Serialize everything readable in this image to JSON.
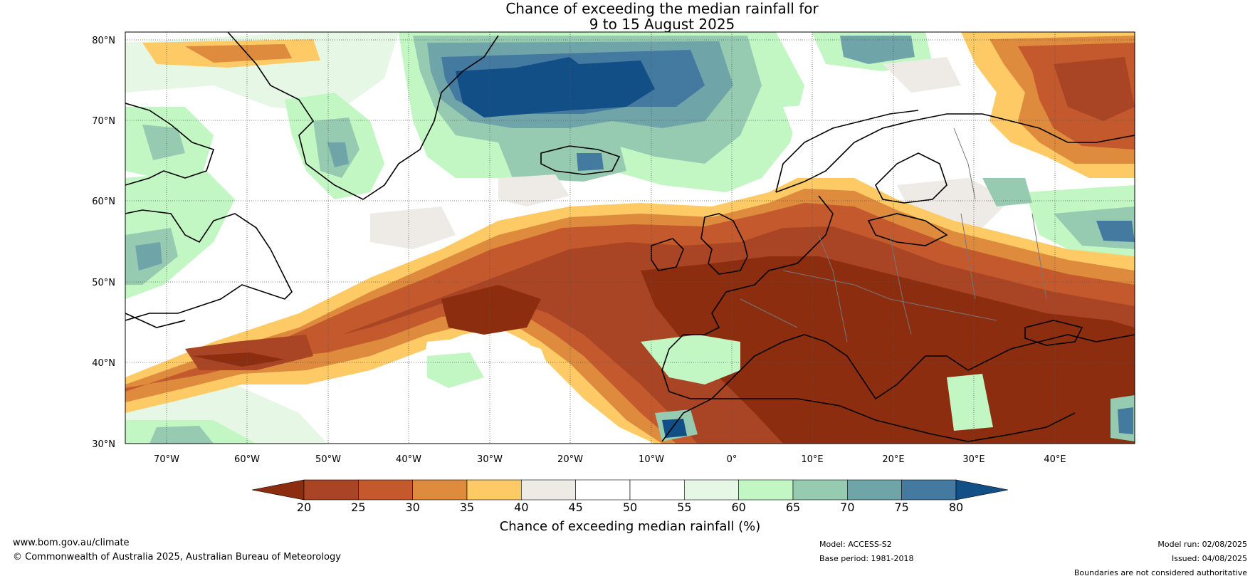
{
  "title": {
    "line1": "Chance of exceeding the median rainfall for",
    "line2": "9 to 15 August 2025"
  },
  "map": {
    "lat_labels": [
      "80°N",
      "70°N",
      "60°N",
      "50°N",
      "40°N",
      "30°N"
    ],
    "lon_labels": [
      "70°W",
      "60°W",
      "50°W",
      "40°W",
      "30°W",
      "20°W",
      "10°W",
      "0°",
      "10°E",
      "20°E",
      "30°E",
      "40°E"
    ]
  },
  "colorbar": {
    "ticks": [
      "20",
      "25",
      "30",
      "35",
      "40",
      "45",
      "50",
      "55",
      "60",
      "65",
      "70",
      "75",
      "80"
    ],
    "colors": [
      "#8c2d10",
      "#a94524",
      "#c3592c",
      "#de8b3e",
      "#fdca66",
      "#eeeae5",
      "#ffffff",
      "#ffffff",
      "#e6f7e6",
      "#c2f7c4",
      "#96cbb1",
      "#6fa5a9",
      "#447aa0",
      "#114f86"
    ],
    "label": "Chance of exceeding median rainfall (%)"
  },
  "footer": {
    "website": "www.bom.gov.au/climate",
    "copyright": "© Commonwealth of Australia 2025, Australian Bureau of Meteorology",
    "model": "Model: ACCESS-S2",
    "base_period": "Base period: 1981-2018",
    "model_run": "Model run: 02/08/2025",
    "issued": "Issued: 04/08/2025",
    "disclaimer": "Boundaries are not considered authoritative"
  }
}
